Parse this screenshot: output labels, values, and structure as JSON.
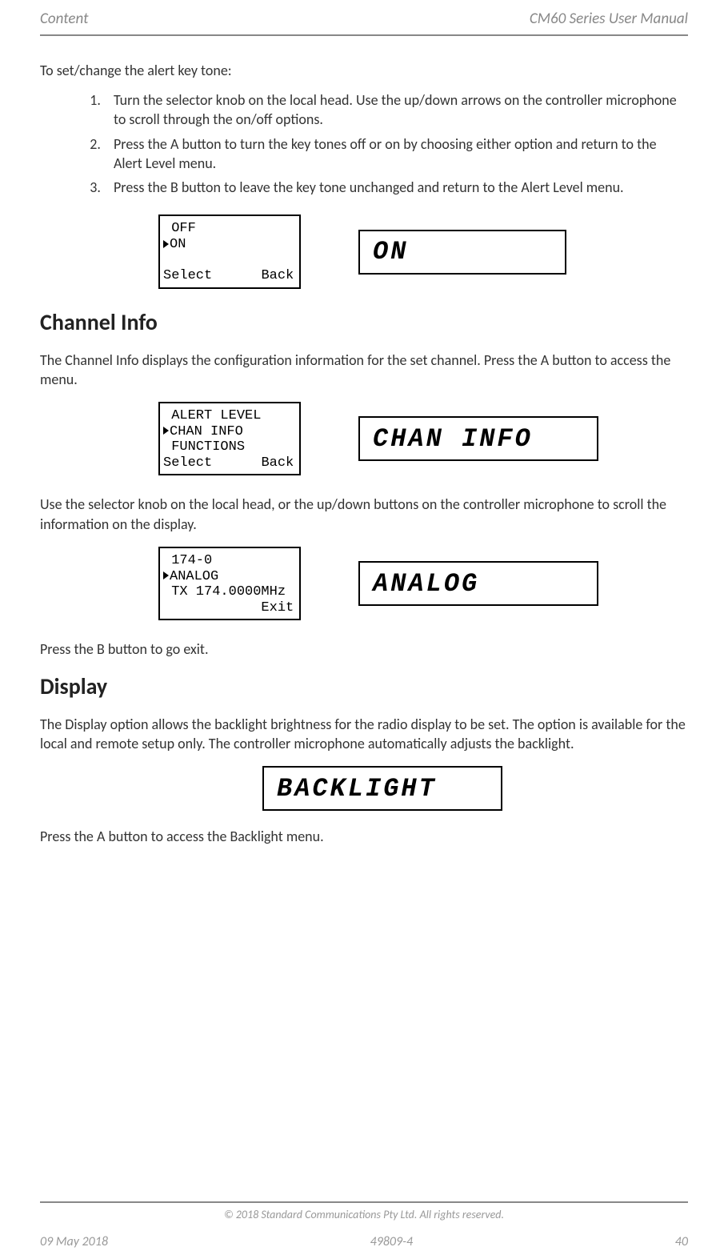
{
  "header": {
    "left": "Content",
    "right": "CM60 Series User Manual"
  },
  "intro": "To set/change the alert key tone:",
  "steps": [
    "Turn the selector knob on the local head. Use the up/down arrows on the controller microphone to scroll through the on/off options.",
    "Press the A button to turn the key tones off or on by choosing either option and return to the Alert Level menu.",
    "Press the B button to leave the key tone unchanged and return to the Alert Level menu."
  ],
  "screen1": {
    "menu": {
      "line1": " OFF",
      "line2": "ON",
      "bottom_left": "Select",
      "bottom_right": "Back"
    },
    "lcd": "ON"
  },
  "section_channel": {
    "heading": "Channel Info",
    "para1": "The Channel Info displays the configuration information for the set channel. Press the A button to access the menu.",
    "menu1": {
      "line1": " ALERT LEVEL",
      "line2": "CHAN INFO",
      "line3": " FUNCTIONS",
      "bottom_left": "Select",
      "bottom_right": "Back"
    },
    "lcd1": "CHAN INFO",
    "para2": "Use the selector knob on the local head, or the up/down buttons on the controller microphone to scroll the information on the display.",
    "menu2": {
      "line1": " 174-0",
      "line2": "ANALOG",
      "line3": " TX 174.0000MHz",
      "bottom_right": "Exit"
    },
    "lcd2": "ANALOG",
    "para3": "Press the B button to go exit."
  },
  "section_display": {
    "heading": "Display",
    "para1": "The Display option allows the backlight brightness for the radio display to be set. The option is available for the local and remote setup only. The controller microphone automatically adjusts the backlight.",
    "lcd": "BACKLIGHT",
    "para2": "Press the A button to access the Backlight menu."
  },
  "footer": {
    "copyright": "© 2018 Standard Communications Pty Ltd. All rights reserved.",
    "date": "09 May 2018",
    "docnum": "49809-4",
    "page": "40"
  }
}
